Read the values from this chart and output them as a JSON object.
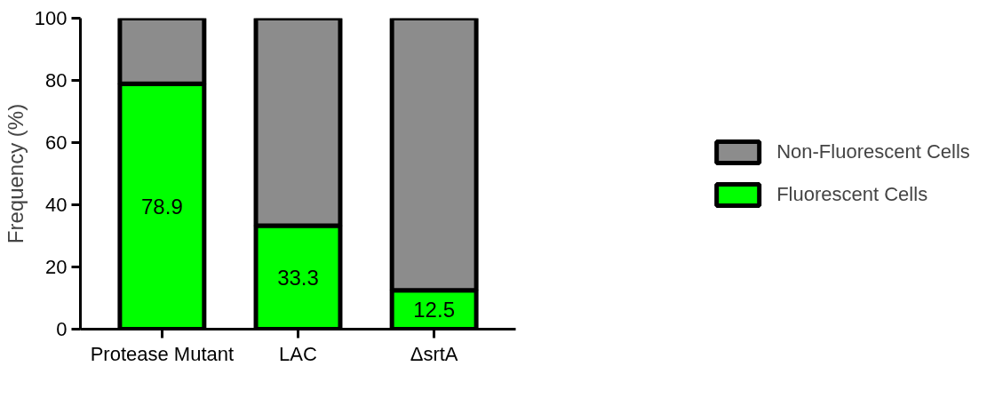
{
  "chart_data": {
    "type": "bar",
    "ylabel": "Frequency (%)",
    "categories": [
      "Protease Mutant",
      "LAC",
      "ΔsrtA"
    ],
    "stacked": true,
    "ylim": [
      0,
      100
    ],
    "yticks": [
      0,
      20,
      40,
      60,
      80,
      100
    ],
    "legend": "right",
    "series": [
      {
        "name": "Fluorescent Cells",
        "color": "#00ff00",
        "values": [
          78.9,
          33.3,
          12.5
        ],
        "value_labels": [
          "78.9",
          "33.3",
          "12.5"
        ]
      },
      {
        "name": "Non-Fluorescent Cells",
        "color": "#8c8c8c",
        "values": [
          21.1,
          66.7,
          87.5
        ]
      }
    ]
  }
}
